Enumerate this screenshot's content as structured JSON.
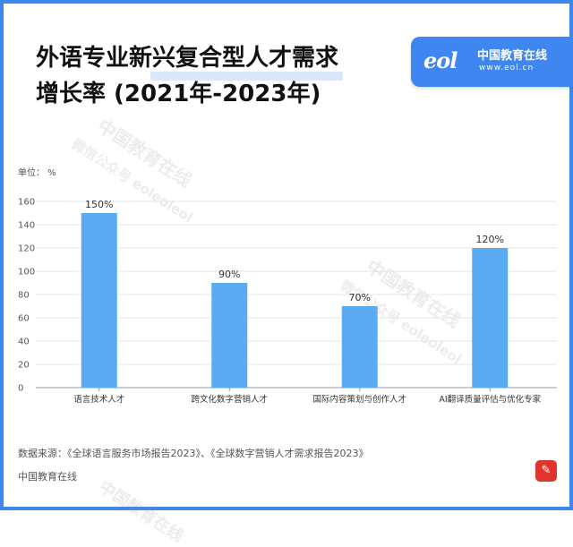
{
  "header": {
    "title_line1": "外语专业新兴复合型人才需求",
    "title_line2": "增长率 (2021年-2023年)"
  },
  "logo": {
    "mark": "eol",
    "name": "中国教育在线",
    "url": "www.eol.cn"
  },
  "unit_label": "单位： %",
  "watermarks": {
    "cn": "中国教育在线",
    "sub": "微信公众号 eoleoleol"
  },
  "footer": {
    "source": "数据来源：《全球语言服务市场报告2023》、《全球数字营销人才需求报告2023》",
    "brand": "中国教育在线"
  },
  "colors": {
    "bar": "#5aabf2",
    "accent": "#3f86f0",
    "grid": "#e6e6e6"
  },
  "chart_data": {
    "type": "bar",
    "categories": [
      "语言技术人才",
      "跨文化数字营销人才",
      "国际内容策划与创作人才",
      "AI翻译质量评估与优化专家"
    ],
    "values": [
      150,
      90,
      70,
      120
    ],
    "value_labels": [
      "150%",
      "90%",
      "70%",
      "120%"
    ],
    "yticks": [
      0,
      20,
      40,
      60,
      80,
      100,
      120,
      140,
      160
    ],
    "ylim": [
      0,
      160
    ],
    "grid": true,
    "legend": "none"
  }
}
